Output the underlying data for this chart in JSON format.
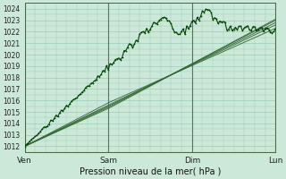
{
  "title": "",
  "xlabel": "Pression niveau de la mer( hPa )",
  "ylabel": "",
  "bg_color": "#cce8d8",
  "grid_color": "#99ccbb",
  "line_color_dark": "#004400",
  "line_color_med": "#226622",
  "ylim": [
    1011.5,
    1024.5
  ],
  "xlim": [
    0,
    72
  ],
  "x_ticks": [
    0,
    24,
    48,
    72
  ],
  "x_labels": [
    "Ven",
    "Sam",
    "Dim",
    "Lun"
  ],
  "y_ticks": [
    1012,
    1013,
    1014,
    1015,
    1016,
    1017,
    1018,
    1019,
    1020,
    1021,
    1022,
    1023,
    1024
  ],
  "figsize": [
    3.2,
    2.0
  ],
  "dpi": 100
}
